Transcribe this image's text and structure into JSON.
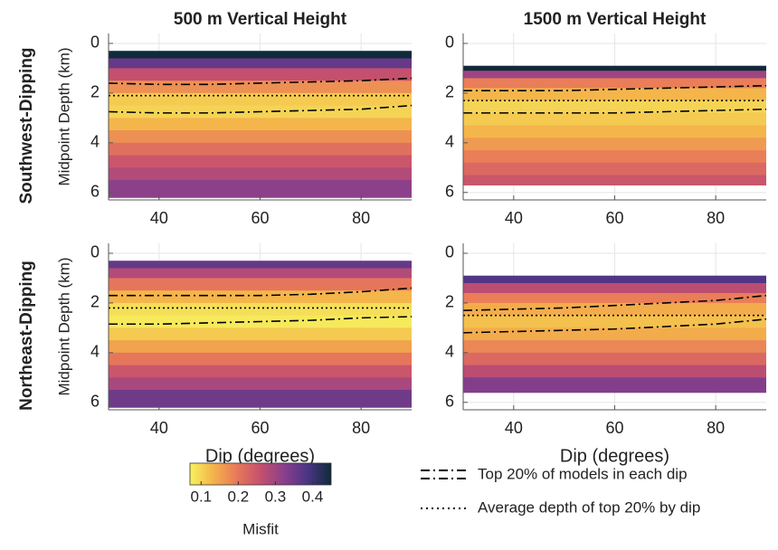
{
  "chart_data": [
    {
      "type": "heatmap",
      "title": "500 m Vertical Height",
      "row_label": "Southwest-Dipping",
      "ylabel": "Midpoint Depth (km)",
      "xlim": [
        30,
        90
      ],
      "xticks": [
        40,
        60,
        80
      ],
      "ylim": [
        -0.4,
        6.3
      ],
      "yticks": [
        0,
        2,
        4,
        6
      ],
      "y_reversed": true,
      "grid": true,
      "depth_bins": [
        0.3,
        0.6,
        1.0,
        1.5,
        2.0,
        2.5,
        3.0,
        3.5,
        4.0,
        4.5,
        5.0,
        5.5,
        6.2
      ],
      "misfit": [
        0.45,
        0.36,
        0.26,
        0.17,
        0.11,
        0.1,
        0.13,
        0.17,
        0.21,
        0.25,
        0.28,
        0.32
      ],
      "x": [
        30,
        40,
        50,
        60,
        70,
        80,
        90
      ],
      "top": [
        1.6,
        1.65,
        1.65,
        1.6,
        1.55,
        1.5,
        1.4
      ],
      "bottom": [
        2.75,
        2.8,
        2.8,
        2.75,
        2.7,
        2.65,
        2.5
      ],
      "average": 2.1
    },
    {
      "type": "heatmap",
      "title": "1500 m Vertical Height",
      "xlim": [
        30,
        90
      ],
      "xticks": [
        40,
        60,
        80
      ],
      "ylim": [
        -0.4,
        6.3
      ],
      "yticks": [
        0,
        2,
        4,
        6
      ],
      "y_reversed": true,
      "grid": true,
      "depth_bins": [
        0.9,
        1.1,
        1.4,
        1.8,
        2.3,
        2.8,
        3.3,
        3.8,
        4.3,
        4.8,
        5.3,
        5.7
      ],
      "misfit": [
        0.45,
        0.3,
        0.19,
        0.13,
        0.1,
        0.11,
        0.13,
        0.16,
        0.19,
        0.22,
        0.25
      ],
      "x": [
        30,
        40,
        50,
        60,
        70,
        80,
        90
      ],
      "top": [
        1.9,
        1.9,
        1.9,
        1.85,
        1.8,
        1.75,
        1.7
      ],
      "bottom": [
        2.8,
        2.8,
        2.8,
        2.8,
        2.75,
        2.7,
        2.65
      ],
      "average": 2.3
    },
    {
      "type": "heatmap",
      "row_label": "Northeast-Dipping",
      "ylabel": "Midpoint Depth (km)",
      "xlabel": "Dip (degrees)",
      "xlim": [
        30,
        90
      ],
      "xticks": [
        40,
        60,
        80
      ],
      "ylim": [
        -0.4,
        6.3
      ],
      "yticks": [
        0,
        2,
        4,
        6
      ],
      "y_reversed": true,
      "grid": true,
      "depth_bins": [
        0.3,
        0.6,
        1.0,
        1.5,
        2.0,
        2.5,
        3.0,
        3.5,
        4.0,
        4.5,
        5.0,
        5.5,
        6.2
      ],
      "misfit": [
        0.36,
        0.28,
        0.2,
        0.13,
        0.09,
        0.08,
        0.11,
        0.15,
        0.2,
        0.25,
        0.29,
        0.35
      ],
      "x": [
        30,
        40,
        50,
        60,
        70,
        80,
        90
      ],
      "top": [
        1.7,
        1.7,
        1.7,
        1.7,
        1.65,
        1.55,
        1.4
      ],
      "bottom": [
        2.85,
        2.85,
        2.8,
        2.75,
        2.7,
        2.6,
        2.55
      ],
      "average": 2.2
    },
    {
      "type": "heatmap",
      "xlabel": "Dip (degrees)",
      "xlim": [
        30,
        90
      ],
      "xticks": [
        40,
        60,
        80
      ],
      "ylim": [
        -0.4,
        6.3
      ],
      "yticks": [
        0,
        2,
        4,
        6
      ],
      "y_reversed": true,
      "grid": true,
      "depth_bins": [
        0.9,
        1.2,
        1.6,
        2.0,
        2.5,
        3.0,
        3.5,
        4.0,
        4.5,
        5.0,
        5.6
      ],
      "misfit": [
        0.38,
        0.27,
        0.19,
        0.14,
        0.12,
        0.14,
        0.18,
        0.22,
        0.27,
        0.33
      ],
      "x": [
        30,
        40,
        50,
        60,
        70,
        80,
        90
      ],
      "top": [
        2.3,
        2.25,
        2.2,
        2.1,
        2.0,
        1.9,
        1.7
      ],
      "bottom": [
        3.2,
        3.15,
        3.1,
        3.05,
        2.95,
        2.85,
        2.65
      ],
      "average": 2.5
    }
  ],
  "colorbar": {
    "label": "Misfit",
    "clim": [
      0.07,
      0.45
    ],
    "ticks": [
      0.1,
      0.2,
      0.3,
      0.4
    ],
    "colormap": [
      "#f6f35e",
      "#f4b24a",
      "#e8785a",
      "#c4506e",
      "#8a3f8c",
      "#4a3585",
      "#0f2a3a"
    ]
  },
  "legend": [
    {
      "label": "Top 20% of models in each dip"
    },
    {
      "label": "Average depth of top 20% by dip"
    }
  ]
}
